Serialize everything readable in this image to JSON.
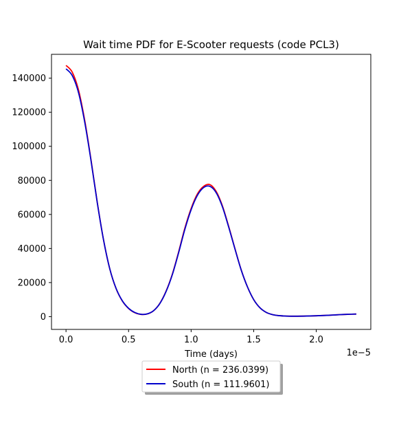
{
  "chart_data": {
    "type": "line",
    "title": "Wait time PDF for E-Scooter  requests (code PCL3)",
    "xlabel": "Time (days)",
    "ylabel": "",
    "x_offset_text": "1e−5",
    "x_scale": 1e-05,
    "xlim": [
      -0.116,
      2.436
    ],
    "ylim": [
      -7500,
      154000
    ],
    "xticks": [
      0.0,
      0.5,
      1.0,
      1.5,
      2.0
    ],
    "xtick_labels": [
      "0.0",
      "0.5",
      "1.0",
      "1.5",
      "2.0"
    ],
    "yticks": [
      0,
      20000,
      40000,
      60000,
      80000,
      100000,
      120000,
      140000
    ],
    "ytick_labels": [
      "0",
      "20000",
      "40000",
      "60000",
      "80000",
      "100000",
      "120000",
      "140000"
    ],
    "grid": false,
    "legend_position": "below",
    "series": [
      {
        "name": "North (n = 236.0399)",
        "color": "#ff0000",
        "x": [
          0.0,
          0.05,
          0.1,
          0.15,
          0.2,
          0.25,
          0.3,
          0.35,
          0.4,
          0.45,
          0.5,
          0.55,
          0.6,
          0.65,
          0.7,
          0.75,
          0.8,
          0.85,
          0.9,
          0.95,
          1.0,
          1.05,
          1.1,
          1.15,
          1.2,
          1.25,
          1.3,
          1.35,
          1.4,
          1.45,
          1.5,
          1.55,
          1.6,
          1.65,
          1.7,
          1.75,
          1.8,
          1.85,
          1.9,
          1.95,
          2.0,
          2.05,
          2.1,
          2.15,
          2.2,
          2.25,
          2.32
        ],
        "y": [
          147500,
          143500,
          133000,
          115000,
          92000,
          67000,
          45000,
          28000,
          16500,
          9200,
          4800,
          2300,
          1300,
          1600,
          3500,
          7800,
          15000,
          25000,
          38000,
          52000,
          63500,
          72000,
          76500,
          77500,
          73500,
          65000,
          53000,
          40000,
          27500,
          17500,
          10000,
          5200,
          2500,
          1200,
          600,
          350,
          250,
          250,
          300,
          400,
          500,
          650,
          800,
          1000,
          1200,
          1350,
          1500
        ]
      },
      {
        "name": "South (n = 111.9601)",
        "color": "#0000cc",
        "x": [
          0.0,
          0.05,
          0.1,
          0.15,
          0.2,
          0.25,
          0.3,
          0.35,
          0.4,
          0.45,
          0.5,
          0.55,
          0.6,
          0.65,
          0.7,
          0.75,
          0.8,
          0.85,
          0.9,
          0.95,
          1.0,
          1.05,
          1.1,
          1.15,
          1.2,
          1.25,
          1.3,
          1.35,
          1.4,
          1.45,
          1.5,
          1.55,
          1.6,
          1.65,
          1.7,
          1.75,
          1.8,
          1.85,
          1.9,
          1.95,
          2.0,
          2.05,
          2.1,
          2.15,
          2.2,
          2.25,
          2.32
        ],
        "y": [
          145500,
          141500,
          131500,
          114000,
          91500,
          66800,
          45000,
          28000,
          16600,
          9300,
          4900,
          2400,
          1350,
          1650,
          3500,
          7700,
          14800,
          24700,
          37500,
          51300,
          62800,
          71200,
          75800,
          76500,
          72800,
          64500,
          52600,
          39800,
          27400,
          17500,
          10000,
          5200,
          2500,
          1200,
          600,
          350,
          250,
          250,
          300,
          400,
          500,
          650,
          800,
          1000,
          1200,
          1350,
          1500
        ]
      }
    ]
  }
}
